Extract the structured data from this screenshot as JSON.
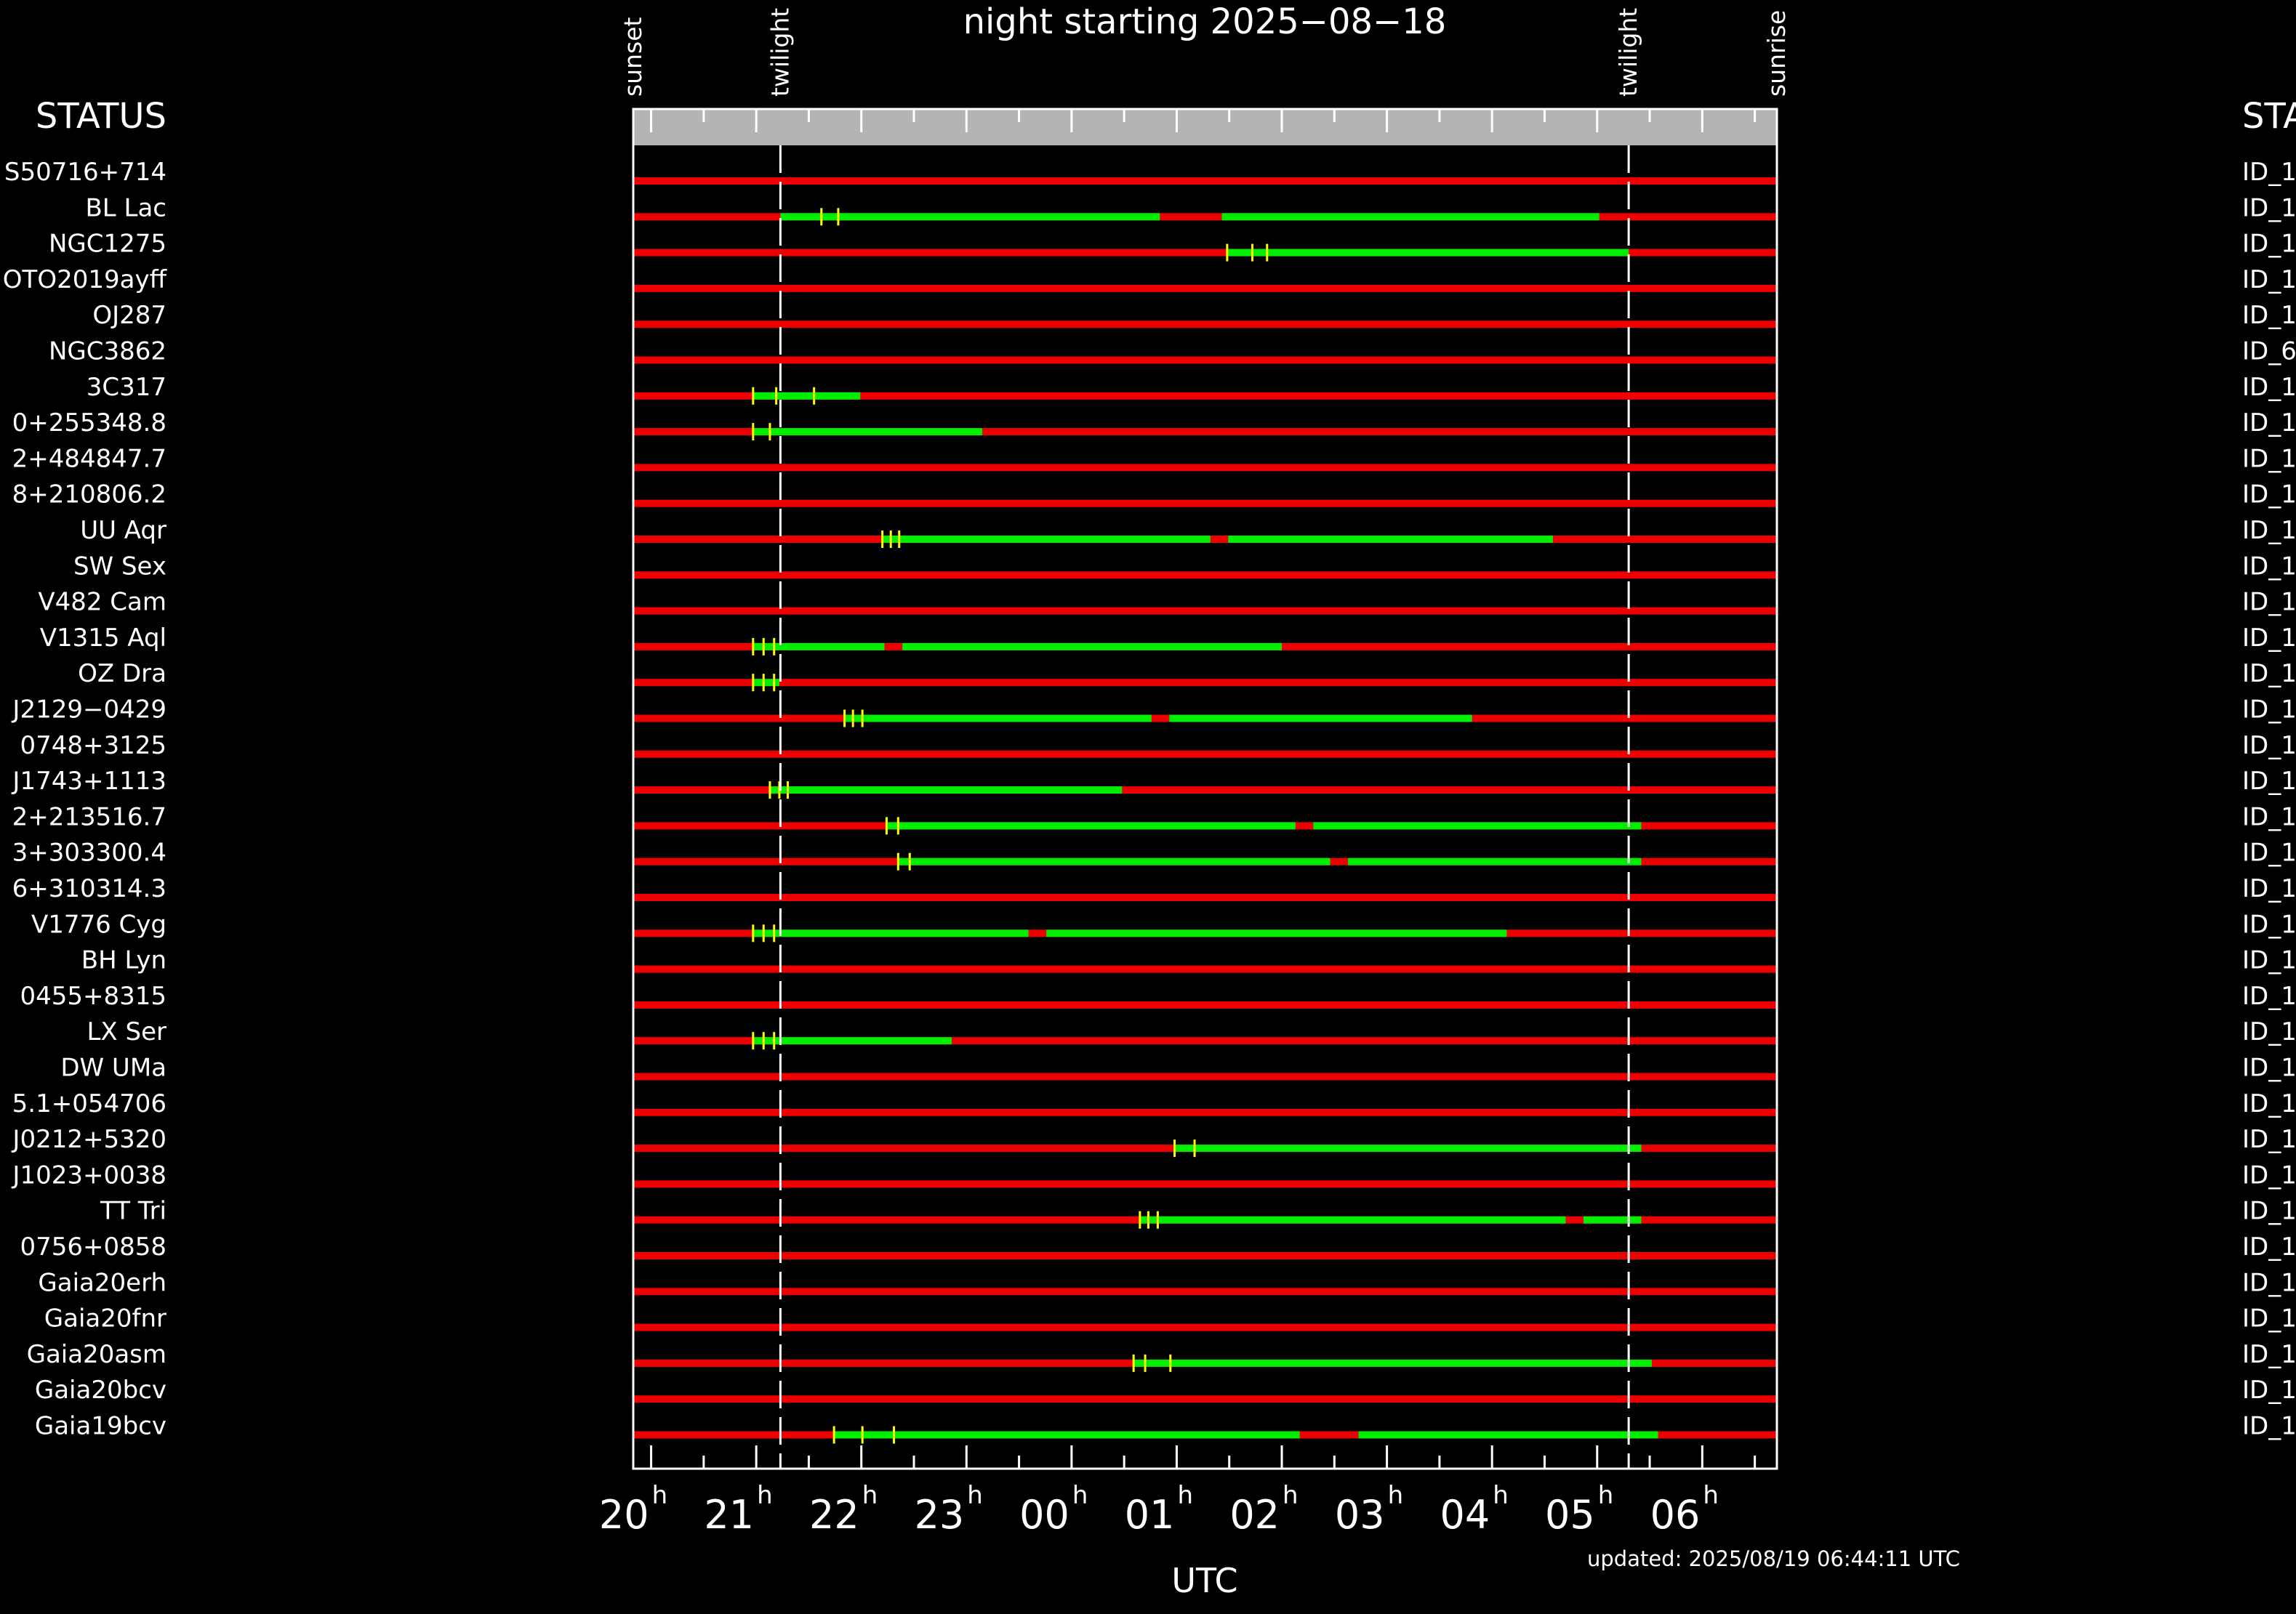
{
  "chart_data": {
    "type": "timeline",
    "title": "night starting 2025−08−18",
    "xlabel": "UTC",
    "updated": "updated: 2025/08/19 06:44:11 UTC",
    "left_header": "STATUS",
    "right_header": "STA",
    "x_range_hours_utc": [
      19.83,
      30.71
    ],
    "x_ticks": [
      {
        "hour": 20,
        "label": "20",
        "sup": "h"
      },
      {
        "hour": 21,
        "label": "21",
        "sup": "h"
      },
      {
        "hour": 22,
        "label": "22",
        "sup": "h"
      },
      {
        "hour": 23,
        "label": "23",
        "sup": "h"
      },
      {
        "hour": 24,
        "label": "00",
        "sup": "h"
      },
      {
        "hour": 25,
        "label": "01",
        "sup": "h"
      },
      {
        "hour": 26,
        "label": "02",
        "sup": "h"
      },
      {
        "hour": 27,
        "label": "03",
        "sup": "h"
      },
      {
        "hour": 28,
        "label": "04",
        "sup": "h"
      },
      {
        "hour": 29,
        "label": "05",
        "sup": "h"
      },
      {
        "hour": 30,
        "label": "06",
        "sup": "h"
      }
    ],
    "events": [
      {
        "label": "sunset",
        "hour": 19.83,
        "line": false
      },
      {
        "label": "twilight",
        "hour": 21.23,
        "line": true
      },
      {
        "label": "twilight",
        "hour": 29.3,
        "line": true
      },
      {
        "label": "sunrise",
        "hour": 30.71,
        "line": false
      }
    ],
    "colors": {
      "unobservable": "#ee0000",
      "observable": "#00ee00",
      "marker": "#ffff00",
      "header_band": "#b4b4b4"
    },
    "targets": [
      {
        "name": "S50716+714",
        "status": "ID_1",
        "observable": [],
        "markers": []
      },
      {
        "name": "BL Lac",
        "status": "ID_1",
        "observable": [
          [
            21.23,
            24.84
          ],
          [
            25.43,
            29.02
          ]
        ],
        "markers": [
          21.62,
          21.78
        ]
      },
      {
        "name": "NGC1275",
        "status": "ID_1",
        "observable": [
          [
            25.48,
            29.3
          ]
        ],
        "markers": [
          25.48,
          25.72,
          25.86
        ]
      },
      {
        "name": "OTO2019ayff",
        "status": "ID_1",
        "observable": [],
        "markers": []
      },
      {
        "name": "OJ287",
        "status": "ID_1",
        "observable": [],
        "markers": []
      },
      {
        "name": "NGC3862",
        "status": "ID_6",
        "observable": [],
        "markers": []
      },
      {
        "name": "3C317",
        "status": "ID_1",
        "observable": [
          [
            20.97,
            21.99
          ]
        ],
        "markers": [
          20.97,
          21.19,
          21.55
        ]
      },
      {
        "name": "0+255348.8",
        "status": "ID_1",
        "observable": [
          [
            20.97,
            23.15
          ]
        ],
        "markers": [
          20.97,
          21.13
        ]
      },
      {
        "name": "2+484847.7",
        "status": "ID_1",
        "observable": [],
        "markers": []
      },
      {
        "name": "8+210806.2",
        "status": "ID_1",
        "observable": [],
        "markers": []
      },
      {
        "name": "UU Aqr",
        "status": "ID_1",
        "observable": [
          [
            22.2,
            25.32
          ],
          [
            25.49,
            28.58
          ]
        ],
        "markers": [
          22.2,
          22.28,
          22.36
        ]
      },
      {
        "name": "SW Sex",
        "status": "ID_1",
        "observable": [],
        "markers": []
      },
      {
        "name": "V482 Cam",
        "status": "ID_1",
        "observable": [],
        "markers": []
      },
      {
        "name": "V1315 Aql",
        "status": "ID_1",
        "observable": [
          [
            20.97,
            22.22
          ],
          [
            22.39,
            26.0
          ]
        ],
        "markers": [
          20.97,
          21.07,
          21.17
        ]
      },
      {
        "name": "OZ Dra",
        "status": "ID_1",
        "observable": [
          [
            20.97,
            21.22
          ]
        ],
        "markers": [
          20.97,
          21.07,
          21.17
        ]
      },
      {
        "name": "J2129−0429",
        "status": "ID_1",
        "observable": [
          [
            21.84,
            24.76
          ],
          [
            24.93,
            27.81
          ]
        ],
        "markers": [
          21.84,
          21.92,
          22.01
        ]
      },
      {
        "name": "0748+3125",
        "status": "ID_1",
        "observable": [],
        "markers": []
      },
      {
        "name": "J1743+1113",
        "status": "ID_1",
        "observable": [
          [
            21.13,
            24.48
          ]
        ],
        "markers": [
          21.13,
          21.22,
          21.3
        ]
      },
      {
        "name": "2+213516.7",
        "status": "ID_1",
        "observable": [
          [
            22.24,
            26.13
          ],
          [
            26.3,
            29.42
          ]
        ],
        "markers": [
          22.24,
          22.35
        ]
      },
      {
        "name": "3+303300.4",
        "status": "ID_1",
        "observable": [
          [
            22.35,
            26.46
          ],
          [
            26.63,
            29.42
          ]
        ],
        "markers": [
          22.35,
          22.46
        ]
      },
      {
        "name": "6+310314.3",
        "status": "ID_1",
        "observable": [],
        "markers": []
      },
      {
        "name": "V1776 Cyg",
        "status": "ID_1",
        "observable": [
          [
            20.97,
            23.59
          ],
          [
            23.76,
            28.14
          ]
        ],
        "markers": [
          20.97,
          21.07,
          21.17
        ]
      },
      {
        "name": "BH Lyn",
        "status": "ID_1",
        "observable": [],
        "markers": []
      },
      {
        "name": "0455+8315",
        "status": "ID_1",
        "observable": [],
        "markers": []
      },
      {
        "name": "LX Ser",
        "status": "ID_1",
        "observable": [
          [
            20.97,
            22.86
          ]
        ],
        "markers": [
          20.97,
          21.07,
          21.17
        ]
      },
      {
        "name": "DW UMa",
        "status": "ID_1",
        "observable": [],
        "markers": []
      },
      {
        "name": "5.1+054706",
        "status": "ID_1",
        "observable": [],
        "markers": []
      },
      {
        "name": "J0212+5320",
        "status": "ID_1",
        "observable": [
          [
            24.98,
            29.42
          ]
        ],
        "markers": [
          24.98,
          25.17
        ]
      },
      {
        "name": "J1023+0038",
        "status": "ID_1",
        "observable": [],
        "markers": []
      },
      {
        "name": "TT Tri",
        "status": "ID_1",
        "observable": [
          [
            24.65,
            28.7
          ],
          [
            28.87,
            29.42
          ]
        ],
        "markers": [
          24.65,
          24.73,
          24.82
        ]
      },
      {
        "name": "0756+0858",
        "status": "ID_1",
        "observable": [],
        "markers": []
      },
      {
        "name": "Gaia20erh",
        "status": "ID_1",
        "observable": [],
        "markers": []
      },
      {
        "name": "Gaia20fnr",
        "status": "ID_1",
        "observable": [],
        "markers": []
      },
      {
        "name": "Gaia20asm",
        "status": "ID_1",
        "observable": [
          [
            24.59,
            29.52
          ]
        ],
        "markers": [
          24.59,
          24.7,
          24.94
        ]
      },
      {
        "name": "Gaia20bcv",
        "status": "ID_1",
        "observable": [],
        "markers": []
      },
      {
        "name": "Gaia19bcv",
        "status": "ID_1",
        "observable": [
          [
            21.74,
            26.17
          ],
          [
            26.73,
            29.58
          ]
        ],
        "markers": [
          21.74,
          22.01,
          22.31
        ]
      }
    ]
  }
}
